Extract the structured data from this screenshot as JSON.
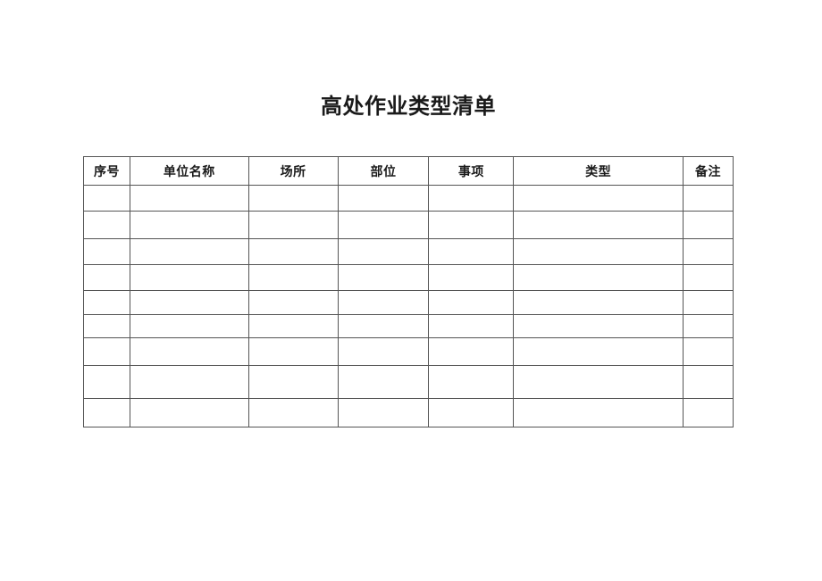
{
  "page": {
    "title": "高处作业类型清单"
  },
  "table": {
    "headers": [
      "序号",
      "单位名称",
      "场所",
      "部位",
      "事项",
      "类型",
      "备注"
    ],
    "rows": [
      [
        "",
        "",
        "",
        "",
        "",
        "",
        ""
      ],
      [
        "",
        "",
        "",
        "",
        "",
        "",
        ""
      ],
      [
        "",
        "",
        "",
        "",
        "",
        "",
        ""
      ],
      [
        "",
        "",
        "",
        "",
        "",
        "",
        ""
      ],
      [
        "",
        "",
        "",
        "",
        "",
        "",
        ""
      ],
      [
        "",
        "",
        "",
        "",
        "",
        "",
        ""
      ],
      [
        "",
        "",
        "",
        "",
        "",
        "",
        ""
      ],
      [
        "",
        "",
        "",
        "",
        "",
        "",
        ""
      ],
      [
        "",
        "",
        "",
        "",
        "",
        "",
        ""
      ]
    ]
  },
  "colors": {
    "border": "#555555",
    "text": "#1a1a1a",
    "page_background": "#ffffff"
  }
}
